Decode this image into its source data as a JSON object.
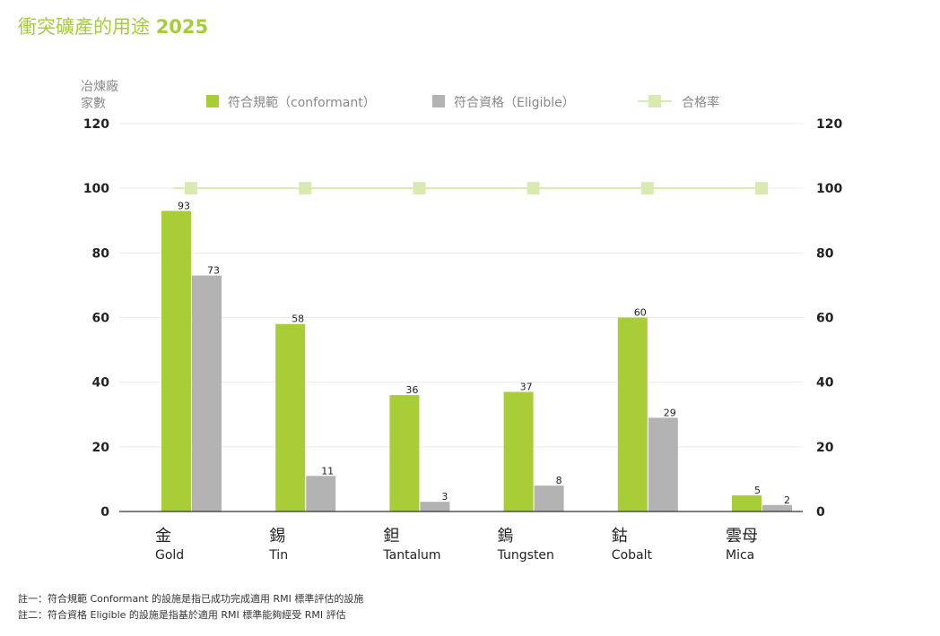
{
  "title": {
    "text": "衝突礦產的用途",
    "year": "2025"
  },
  "notes": [
    "註一：符合規範 Conformant 的設施是指已成功完成適用 RMI 標準評估的設施",
    "註二：符合資格 Eligible 的設施是指基於適用 RMI 標準能夠經受 RMI 評估"
  ],
  "colors": {
    "conformant": "#a8cd36",
    "eligible": "#b3b3b3",
    "rate": "#d8eab0",
    "title": "#a6cc3a"
  },
  "chart_data": {
    "type": "bar",
    "ylabel": [
      "冶煉廠",
      "家數"
    ],
    "ylim": [
      0,
      120
    ],
    "yticks": [
      0,
      20,
      40,
      60,
      80,
      100,
      120
    ],
    "right_yticks": [
      0,
      20,
      40,
      60,
      80,
      100,
      120
    ],
    "grid": true,
    "legend_position": "top",
    "categories": [
      {
        "zh": "金",
        "en": "Gold"
      },
      {
        "zh": "錫",
        "en": "Tin"
      },
      {
        "zh": "鉭",
        "en": "Tantalum"
      },
      {
        "zh": "鎢",
        "en": "Tungsten"
      },
      {
        "zh": "鈷",
        "en": "Cobalt"
      },
      {
        "zh": "雲母",
        "en": "Mica"
      }
    ],
    "series": [
      {
        "name": "符合規範（conformant）",
        "type": "bar",
        "values": [
          93,
          58,
          36,
          37,
          60,
          5
        ]
      },
      {
        "name": "符合資格（Eligible）",
        "type": "bar",
        "values": [
          73,
          11,
          3,
          8,
          29,
          2
        ]
      },
      {
        "name": "合格率",
        "type": "line",
        "values": [
          100,
          100,
          100,
          100,
          100,
          100
        ]
      }
    ]
  }
}
